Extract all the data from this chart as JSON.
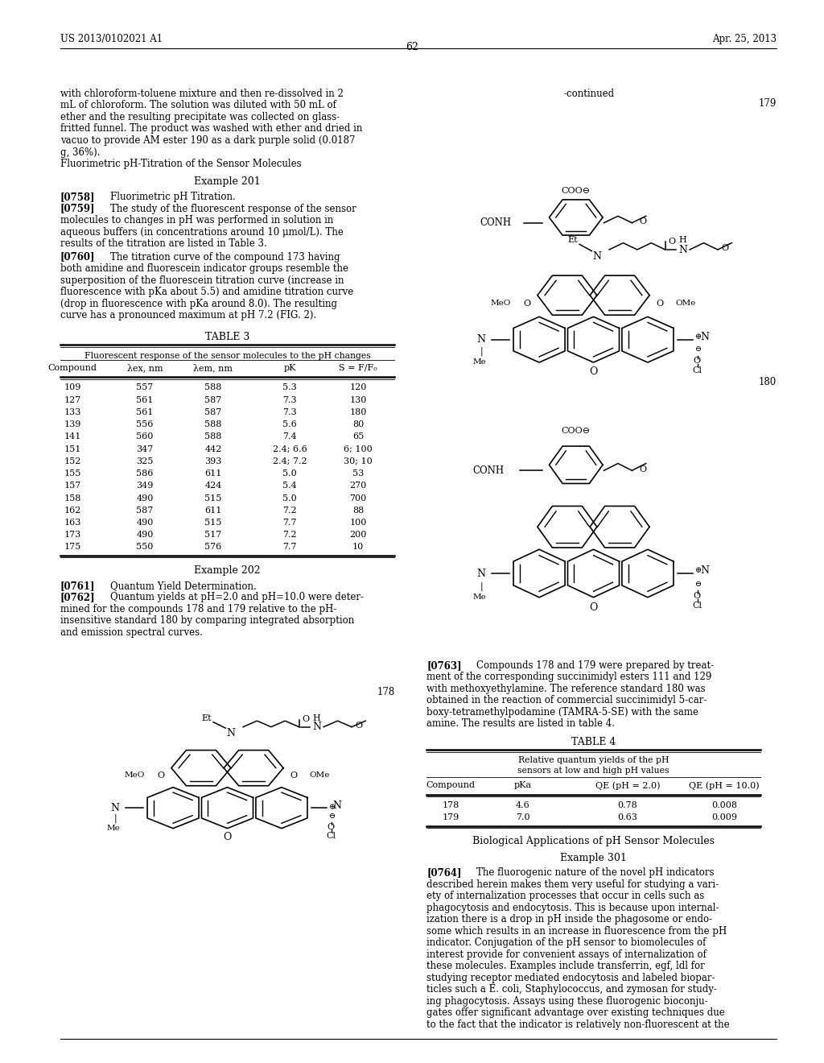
{
  "page_header_left": "US 2013/0102021 A1",
  "page_header_right": "Apr. 25, 2013",
  "page_number": "62",
  "left_col_para1": [
    "with chloroform-toluene mixture and then re-dissolved in 2",
    "mL of chloroform. The solution was diluted with 50 mL of",
    "ether and the resulting precipitate was collected on glass-",
    "fritted funnel. The product was washed with ether and dried in",
    "vacuo to provide AM ester 190 as a dark purple solid (0.0187",
    "g, 36%).",
    "Fluorimetric pH-Titration of the Sensor Molecules"
  ],
  "table3_data": [
    [
      "109",
      "557",
      "588",
      "5.3",
      "120"
    ],
    [
      "127",
      "561",
      "587",
      "7.3",
      "130"
    ],
    [
      "133",
      "561",
      "587",
      "7.3",
      "180"
    ],
    [
      "139",
      "556",
      "588",
      "5.6",
      "80"
    ],
    [
      "141",
      "560",
      "588",
      "7.4",
      "65"
    ],
    [
      "151",
      "347",
      "442",
      "2.4; 6.6",
      "6; 100"
    ],
    [
      "152",
      "325",
      "393",
      "2.4; 7.2",
      "30; 10"
    ],
    [
      "155",
      "586",
      "611",
      "5.0",
      "53"
    ],
    [
      "157",
      "349",
      "424",
      "5.4",
      "270"
    ],
    [
      "158",
      "490",
      "515",
      "5.0",
      "700"
    ],
    [
      "162",
      "587",
      "611",
      "7.2",
      "88"
    ],
    [
      "163",
      "490",
      "515",
      "7.7",
      "100"
    ],
    [
      "173",
      "490",
      "517",
      "7.2",
      "200"
    ],
    [
      "175",
      "550",
      "576",
      "7.7",
      "10"
    ]
  ],
  "table4_data": [
    [
      "178",
      "4.6",
      "0.78",
      "0.008"
    ],
    [
      "179",
      "7.0",
      "0.63",
      "0.009"
    ]
  ],
  "para_0764": [
    "[0764]    The fluorogenic nature of the novel pH indicators",
    "described herein makes them very useful for studying a vari-",
    "ety of internalization processes that occur in cells such as",
    "phagocytosis and endocytosis. This is because upon internal-",
    "ization there is a drop in pH inside the phagosome or endo-",
    "some which results in an increase in fluorescence from the pH",
    "indicator. Conjugation of the pH sensor to biomolecules of",
    "interest provide for convenient assays of internalization of",
    "these molecules. Examples include transferrin, egf, ldl for",
    "studying receptor mediated endocytosis and labeled biopar-",
    "ticles such a E. coli, Staphylococcus, and zymosan for study-",
    "ing phagocytosis. Assays using these fluorogenic bioconju-",
    "gates offer significant advantage over existing techniques due",
    "to the fact that the indicator is relatively non-fluorescent at the"
  ]
}
